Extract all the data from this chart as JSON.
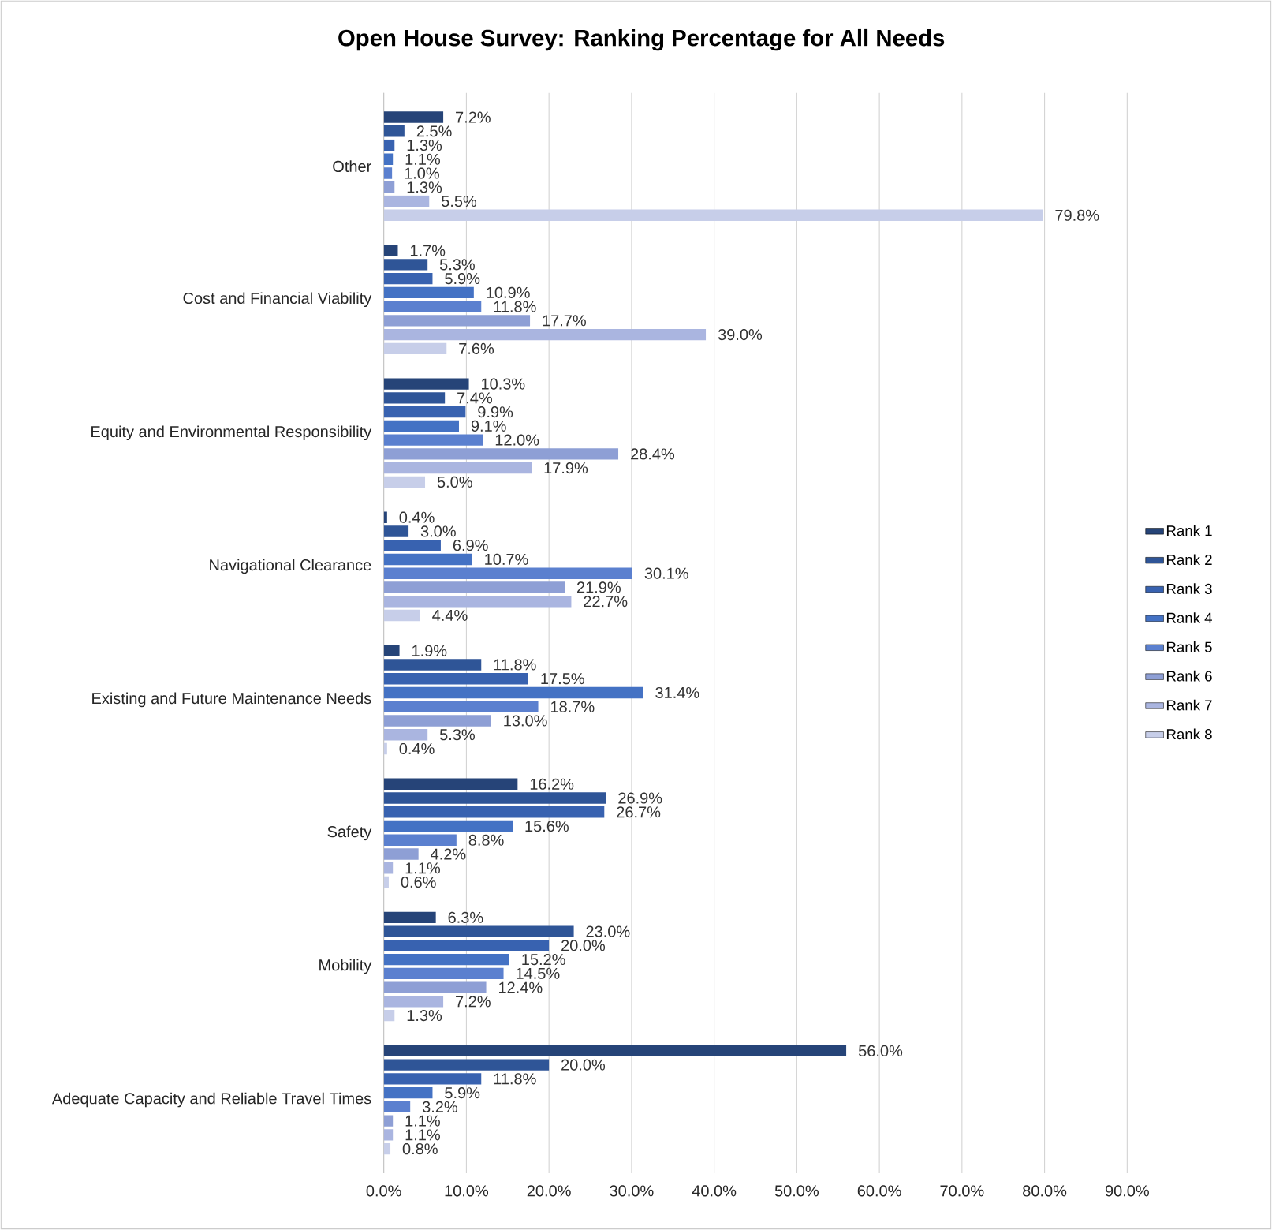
{
  "chart_data": {
    "type": "bar",
    "orientation": "horizontal",
    "title": "Open House Survey: Ranking Percentage for All Needs",
    "categories": [
      "Other",
      "Cost and Financial Viability",
      "Equity and Environmental Responsibility",
      "Navigational Clearance",
      "Existing and Future Maintenance Needs",
      "Safety",
      "Mobility",
      "Adequate Capacity and Reliable Travel Times"
    ],
    "series": [
      {
        "name": "Rank 1",
        "color": "#264478",
        "values": [
          7.2,
          1.7,
          10.3,
          0.4,
          1.9,
          16.2,
          6.3,
          56.0
        ],
        "value_labels": [
          "7.2%",
          "1.7%",
          "10.3%",
          "0.4%",
          "1.9%",
          "16.2%",
          "6.3%",
          "56.0%"
        ]
      },
      {
        "name": "Rank 2",
        "color": "#2f5597",
        "values": [
          2.5,
          5.3,
          7.4,
          3.0,
          11.8,
          26.9,
          23.0,
          20.0
        ],
        "value_labels": [
          "2.5%",
          "5.3%",
          "7.4%",
          "3.0%",
          "11.8%",
          "26.9%",
          "23.0%",
          "20.0%"
        ]
      },
      {
        "name": "Rank 3",
        "color": "#3862b0",
        "values": [
          1.3,
          5.9,
          9.9,
          6.9,
          17.5,
          26.7,
          20.0,
          11.8
        ],
        "value_labels": [
          "1.3%",
          "5.9%",
          "9.9%",
          "6.9%",
          "17.5%",
          "26.7%",
          "20.0%",
          "11.8%"
        ]
      },
      {
        "name": "Rank 4",
        "color": "#4472c4",
        "values": [
          1.1,
          10.9,
          9.1,
          10.7,
          31.4,
          15.6,
          15.2,
          5.9
        ],
        "value_labels": [
          "1.1%",
          "10.9%",
          "9.1%",
          "10.7%",
          "31.4%",
          "15.6%",
          "15.2%",
          "5.9%"
        ]
      },
      {
        "name": "Rank 5",
        "color": "#5b80cf",
        "values": [
          1.0,
          11.8,
          12.0,
          30.1,
          18.7,
          8.8,
          14.5,
          3.2
        ],
        "value_labels": [
          "1.0%",
          "11.8%",
          "12.0%",
          "30.1%",
          "18.7%",
          "8.8%",
          "14.5%",
          "3.2%"
        ]
      },
      {
        "name": "Rank 6",
        "color": "#8e9fd5",
        "values": [
          1.3,
          17.7,
          28.4,
          21.9,
          13.0,
          4.2,
          12.4,
          1.1
        ],
        "value_labels": [
          "1.3%",
          "17.7%",
          "28.4%",
          "21.9%",
          "13.0%",
          "4.2%",
          "12.4%",
          "1.1%"
        ]
      },
      {
        "name": "Rank 7",
        "color": "#aab5e0",
        "values": [
          5.5,
          39.0,
          17.9,
          22.7,
          5.3,
          1.1,
          7.2,
          1.1
        ],
        "value_labels": [
          "5.5%",
          "39.0%",
          "17.9%",
          "22.7%",
          "5.3%",
          "1.1%",
          "7.2%",
          "1.1%"
        ]
      },
      {
        "name": "Rank 8",
        "color": "#c7cee9",
        "values": [
          79.8,
          7.6,
          5.0,
          4.4,
          0.4,
          0.6,
          1.3,
          0.8
        ],
        "value_labels": [
          "79.8%",
          "7.6%",
          "5.0%",
          "4.4%",
          "0.4%",
          "0.6%",
          "1.3%",
          "0.8%"
        ]
      }
    ],
    "xlim": [
      0,
      90
    ],
    "xticks": [
      {
        "value": 0,
        "label": "0.0%"
      },
      {
        "value": 10,
        "label": "10.0%"
      },
      {
        "value": 20,
        "label": "20.0%"
      },
      {
        "value": 30,
        "label": "30.0%"
      },
      {
        "value": 40,
        "label": "40.0%"
      },
      {
        "value": 50,
        "label": "50.0%"
      },
      {
        "value": 60,
        "label": "60.0%"
      },
      {
        "value": 70,
        "label": "70.0%"
      },
      {
        "value": 80,
        "label": "80.0%"
      },
      {
        "value": 90,
        "label": "90.0%"
      }
    ],
    "grid": "x",
    "legend": "right"
  }
}
